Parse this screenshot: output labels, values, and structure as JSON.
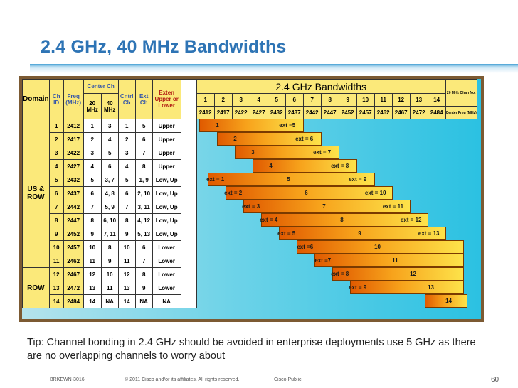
{
  "slide": {
    "title": "2.4 GHz, 40 MHz Bandwidths",
    "tip": "Tip: Channel bonding in 2.4 GHz should be avoided in enterprise deployments use 5 GHz as there are no overlapping channels to worry about",
    "footer": {
      "session": "BRKEWN-3016",
      "copyright": "© 2011 Cisco and/or its affiliates. All rights reserved.",
      "classification": "Cisco Public",
      "page": "60"
    }
  },
  "table": {
    "headers": {
      "domain": "Domain",
      "ch": "Ch",
      "id": "ID",
      "freq": "Freq",
      "mhz": "(MHz)",
      "center_ch": "Center Ch",
      "c20": "20",
      "c20_unit": "MHz",
      "c40": "40",
      "c40_unit": "MHz",
      "cntrl": "Cntrl",
      "cntrl_ch": "Ch",
      "ext": "Ext",
      "ext_ch": "Ch",
      "exten1": "Exten",
      "exten2": "Upper or",
      "exten3": "Lower",
      "band_title": "2.4 GHz Bandwidths",
      "chan_no": "20 MHz Chan No.",
      "center_freq": "Center Freq (MHz)"
    },
    "channel_numbers": [
      "1",
      "2",
      "3",
      "4",
      "5",
      "6",
      "7",
      "8",
      "9",
      "10",
      "11",
      "12",
      "13",
      "14"
    ],
    "center_freqs": [
      "2412",
      "2417",
      "2422",
      "2427",
      "2432",
      "2437",
      "2442",
      "2447",
      "2452",
      "2457",
      "2462",
      "2467",
      "2472",
      "2484"
    ],
    "domains": [
      {
        "label": "US &",
        "label2": "ROW"
      },
      {
        "label": "ROW",
        "label2": ""
      }
    ],
    "rows": [
      {
        "id": "1",
        "freq": "2412",
        "c20": "1",
        "c40": "3",
        "cntrl": "1",
        "ext": "5",
        "dir": "Upper"
      },
      {
        "id": "2",
        "freq": "2417",
        "c20": "2",
        "c40": "4",
        "cntrl": "2",
        "ext": "6",
        "dir": "Upper"
      },
      {
        "id": "3",
        "freq": "2422",
        "c20": "3",
        "c40": "5",
        "cntrl": "3",
        "ext": "7",
        "dir": "Upper"
      },
      {
        "id": "4",
        "freq": "2427",
        "c20": "4",
        "c40": "6",
        "cntrl": "4",
        "ext": "8",
        "dir": "Upper"
      },
      {
        "id": "5",
        "freq": "2432",
        "c20": "5",
        "c40": "3, 7",
        "cntrl": "5",
        "ext": "1, 9",
        "dir": "Low, Up"
      },
      {
        "id": "6",
        "freq": "2437",
        "c20": "6",
        "c40": "4, 8",
        "cntrl": "6",
        "ext": "2, 10",
        "dir": "Low, Up"
      },
      {
        "id": "7",
        "freq": "2442",
        "c20": "7",
        "c40": "5, 9",
        "cntrl": "7",
        "ext": "3, 11",
        "dir": "Low, Up"
      },
      {
        "id": "8",
        "freq": "2447",
        "c20": "8",
        "c40": "6, 10",
        "cntrl": "8",
        "ext": "4, 12",
        "dir": "Low, Up"
      },
      {
        "id": "9",
        "freq": "2452",
        "c20": "9",
        "c40": "7, 11",
        "cntrl": "9",
        "ext": "5, 13",
        "dir": "Low, Up"
      },
      {
        "id": "10",
        "freq": "2457",
        "c20": "10",
        "c40": "8",
        "cntrl": "10",
        "ext": "6",
        "dir": "Lower"
      },
      {
        "id": "11",
        "freq": "2462",
        "c20": "11",
        "c40": "9",
        "cntrl": "11",
        "ext": "7",
        "dir": "Lower"
      },
      {
        "id": "12",
        "freq": "2467",
        "c20": "12",
        "c40": "10",
        "cntrl": "12",
        "ext": "8",
        "dir": "Lower"
      },
      {
        "id": "13",
        "freq": "2472",
        "c20": "13",
        "c40": "11",
        "cntrl": "13",
        "ext": "9",
        "dir": "Lower"
      },
      {
        "id": "14",
        "freq": "2484",
        "c20": "14",
        "c40": "NA",
        "cntrl": "14",
        "ext": "NA",
        "dir": "NA"
      }
    ],
    "bars": [
      {
        "labels": [
          {
            "text": "1",
            "ch": 1
          },
          {
            "text": "ext =5",
            "ch": 5
          }
        ]
      },
      {
        "labels": [
          {
            "text": "2",
            "ch": 2
          },
          {
            "text": "ext = 6",
            "ch": 6
          }
        ]
      },
      {
        "labels": [
          {
            "text": "3",
            "ch": 3
          },
          {
            "text": "ext = 7",
            "ch": 7
          }
        ]
      },
      {
        "labels": [
          {
            "text": "4",
            "ch": 4
          },
          {
            "text": "ext = 8",
            "ch": 8
          }
        ]
      },
      {
        "labels": [
          {
            "text": "ext = 1",
            "ch": 1
          },
          {
            "text": "5",
            "ch": 5
          },
          {
            "text": "ext = 9",
            "ch": 9
          }
        ]
      },
      {
        "labels": [
          {
            "text": "ext = 2",
            "ch": 2
          },
          {
            "text": "6",
            "ch": 6
          },
          {
            "text": "ext = 10",
            "ch": 10
          }
        ]
      },
      {
        "labels": [
          {
            "text": "ext = 3",
            "ch": 3
          },
          {
            "text": "7",
            "ch": 7
          },
          {
            "text": "ext = 11",
            "ch": 11
          }
        ]
      },
      {
        "labels": [
          {
            "text": "ext = 4",
            "ch": 4
          },
          {
            "text": "8",
            "ch": 8
          },
          {
            "text": "ext = 12",
            "ch": 12
          }
        ]
      },
      {
        "labels": [
          {
            "text": "ext = 5",
            "ch": 5
          },
          {
            "text": "9",
            "ch": 9
          },
          {
            "text": "ext = 13",
            "ch": 13
          }
        ]
      },
      {
        "labels": [
          {
            "text": "ext =6",
            "ch": 6
          },
          {
            "text": "10",
            "ch": 10
          }
        ]
      },
      {
        "labels": [
          {
            "text": "ext =7",
            "ch": 7
          },
          {
            "text": "11",
            "ch": 11
          }
        ]
      },
      {
        "labels": [
          {
            "text": "ext = 8",
            "ch": 8
          },
          {
            "text": "12",
            "ch": 12
          }
        ]
      },
      {
        "labels": [
          {
            "text": "ext = 9",
            "ch": 9
          },
          {
            "text": "13",
            "ch": 13
          }
        ]
      },
      {
        "labels": [
          {
            "text": "14",
            "ch": 14
          }
        ]
      }
    ],
    "colors": {
      "bar_dark": "#e05a00",
      "bar_mid": "#f7a21b",
      "bar_light": "#fde34a",
      "header_yellow": "#fbe97a",
      "title_blue": "#2e74b5"
    }
  }
}
